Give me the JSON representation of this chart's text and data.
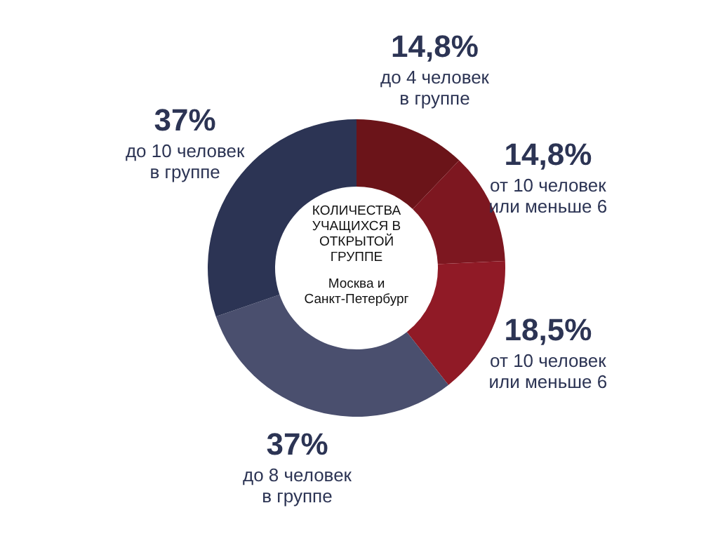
{
  "chart_data": {
    "type": "donut",
    "title": "КОЛИЧЕСТВА УЧАЩИХСЯ В ОТКРЫТОЙ ГРУППЕ",
    "subtitle": "Москва и Санкт-Петербург",
    "categories": [
      "до 4 человек в группе",
      "от 10 человек или меньше 6",
      "от 10 человек или меньше 6",
      "до 8 человек в группе",
      "до 10 человек в группе"
    ],
    "values": [
      14.8,
      14.8,
      18.5,
      37,
      37
    ],
    "value_labels": [
      "14,8%",
      "14,8%",
      "18,5%",
      "37%",
      "37%"
    ],
    "colors": [
      "#6b1419",
      "#7d1720",
      "#901a26",
      "#4a4f6e",
      "#2c3454"
    ]
  }
}
